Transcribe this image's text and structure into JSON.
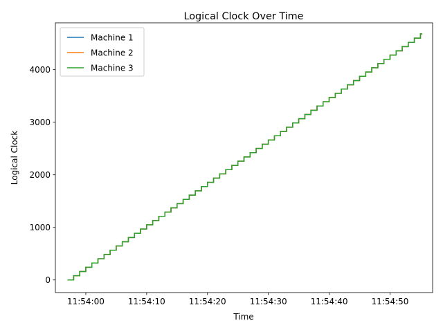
{
  "chart_data": {
    "type": "line",
    "title": "Logical Clock Over Time",
    "xlabel": "Time",
    "ylabel": "Logical Clock",
    "x_ticks": [
      "11:54:00",
      "11:54:10",
      "11:54:20",
      "11:54:30",
      "11:54:40",
      "11:54:50"
    ],
    "y_ticks": [
      0,
      1000,
      2000,
      3000,
      4000
    ],
    "xlim": [
      "11:53:55",
      "11:54:57"
    ],
    "ylim": [
      -240,
      4890
    ],
    "grid": false,
    "legend_position": "upper-left",
    "series": [
      {
        "name": "Machine 1",
        "color": "#1f77b4",
        "start": {
          "time": "11:53:57",
          "clock": 0
        },
        "end": {
          "time": "11:54:55",
          "clock": 4680
        }
      },
      {
        "name": "Machine 2",
        "color": "#ff7f0e",
        "start": {
          "time": "11:53:57",
          "clock": 0
        },
        "end": {
          "time": "11:54:55",
          "clock": 4680
        }
      },
      {
        "name": "Machine 3",
        "color": "#2ca02c",
        "start": {
          "time": "11:53:57",
          "clock": 0
        },
        "end": {
          "time": "11:54:55",
          "clock": 4680
        }
      }
    ]
  }
}
